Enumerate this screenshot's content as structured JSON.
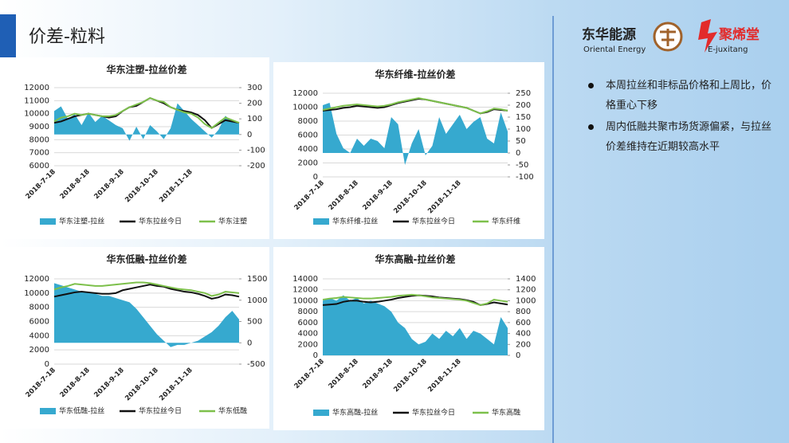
{
  "slide": {
    "title": "价差-粒料",
    "logo1": {
      "name": "东华能源",
      "sub": "Oriental Energy"
    },
    "logo2": {
      "name": "聚烯堂",
      "sub": "E-juxitang"
    },
    "bullets": [
      "本周拉丝和非标品价格和上周比，价格重心下移",
      "周内低融共聚市场货源偏紧，与拉丝价差维持在近期较高水平"
    ]
  },
  "chart_data": [
    {
      "type": "combo",
      "title": "华东注塑-拉丝价差",
      "categories": [
        "2018-7-18",
        null,
        null,
        null,
        null,
        "2018-8-18",
        null,
        null,
        null,
        null,
        "2018-9-18",
        null,
        null,
        null,
        null,
        "2018-10-18",
        null,
        null,
        null,
        null,
        "2018-11-18",
        null,
        null,
        null,
        null,
        null,
        null,
        null
      ],
      "ylim": [
        6000,
        12000
      ],
      "yticks": [
        6000,
        7000,
        8000,
        9000,
        10000,
        11000,
        12000
      ],
      "y2lim": [
        -200,
        300
      ],
      "y2ticks": [
        -200,
        -100,
        0,
        100,
        200,
        300
      ],
      "series": [
        {
          "name": "华东注塑-拉丝",
          "kind": "area",
          "axis": "y2",
          "color": "#36a9cf",
          "values": [
            150,
            180,
            100,
            130,
            60,
            140,
            80,
            120,
            90,
            60,
            40,
            -40,
            50,
            -30,
            60,
            20,
            -30,
            40,
            200,
            150,
            100,
            60,
            20,
            -20,
            30,
            120,
            80,
            70
          ]
        },
        {
          "name": "华东拉丝今日",
          "kind": "line",
          "color": "#111111",
          "values": [
            9300,
            9400,
            9600,
            9800,
            9900,
            10000,
            9900,
            9800,
            9700,
            9800,
            10200,
            10500,
            10600,
            10900,
            11200,
            11000,
            10800,
            10500,
            10300,
            10200,
            10100,
            9900,
            9500,
            8900,
            9200,
            9500,
            9400,
            9300
          ]
        },
        {
          "name": "华东注塑",
          "kind": "line",
          "color": "#7dc04b",
          "values": [
            9400,
            9700,
            9800,
            10000,
            9900,
            10000,
            9900,
            9800,
            9800,
            9900,
            10200,
            10500,
            10700,
            10900,
            11200,
            11000,
            10900,
            10500,
            10300,
            10100,
            10000,
            9700,
            9200,
            8900,
            9300,
            9700,
            9500,
            9300
          ]
        }
      ]
    },
    {
      "type": "combo",
      "title": "华东纤维-拉丝价差",
      "categories": [
        "2018-7-18",
        null,
        null,
        null,
        null,
        "2018-8-18",
        null,
        null,
        null,
        null,
        "2018-9-18",
        null,
        null,
        null,
        null,
        "2018-10-18",
        null,
        null,
        null,
        null,
        "2018-11-18",
        null,
        null,
        null,
        null,
        null,
        null,
        null
      ],
      "ylim": [
        0,
        12000
      ],
      "yticks": [
        0,
        2000,
        4000,
        6000,
        8000,
        10000,
        12000
      ],
      "y2lim": [
        -100,
        250
      ],
      "y2ticks": [
        -100,
        -50,
        0,
        50,
        100,
        150,
        200,
        250
      ],
      "series": [
        {
          "name": "华东纤维-拉丝",
          "kind": "area",
          "axis": "y2",
          "color": "#36a9cf",
          "values": [
            200,
            210,
            80,
            20,
            0,
            60,
            30,
            60,
            50,
            20,
            150,
            120,
            -50,
            40,
            100,
            -10,
            30,
            150,
            80,
            120,
            160,
            100,
            130,
            150,
            60,
            40,
            170,
            90
          ]
        },
        {
          "name": "华东拉丝今日",
          "kind": "line",
          "color": "#111111",
          "values": [
            9500,
            9600,
            9700,
            9900,
            10000,
            10200,
            10100,
            10000,
            9900,
            10000,
            10300,
            10600,
            10800,
            11000,
            11200,
            11100,
            10900,
            10700,
            10500,
            10300,
            10100,
            9900,
            9500,
            9100,
            9300,
            9700,
            9600,
            9500
          ]
        },
        {
          "name": "华东纤维",
          "kind": "line",
          "color": "#7dc04b",
          "values": [
            9600,
            9800,
            10000,
            10200,
            10300,
            10400,
            10300,
            10200,
            10100,
            10200,
            10400,
            10700,
            10900,
            11100,
            11300,
            11100,
            10900,
            10700,
            10500,
            10300,
            10100,
            9900,
            9500,
            9100,
            9400,
            9800,
            9700,
            9500
          ]
        }
      ]
    },
    {
      "type": "combo",
      "title": "华东低融-拉丝价差",
      "categories": [
        "2018-7-18",
        null,
        null,
        null,
        null,
        "2018-8-18",
        null,
        null,
        null,
        null,
        "2018-9-18",
        null,
        null,
        null,
        null,
        "2018-10-18",
        null,
        null,
        null,
        null,
        "2018-11-18",
        null,
        null,
        null,
        null,
        null,
        null,
        null
      ],
      "ylim": [
        0,
        12000
      ],
      "yticks": [
        0,
        2000,
        4000,
        6000,
        8000,
        10000,
        12000
      ],
      "y2lim": [
        -500,
        1500
      ],
      "y2ticks": [
        -500,
        0,
        500,
        1000,
        1500
      ],
      "series": [
        {
          "name": "华东低融-拉丝",
          "kind": "area",
          "axis": "y2",
          "color": "#36a9cf",
          "values": [
            1400,
            1350,
            1300,
            1250,
            1200,
            1200,
            1150,
            1100,
            1100,
            1050,
            1000,
            950,
            800,
            600,
            400,
            200,
            50,
            -100,
            -50,
            -50,
            0,
            50,
            150,
            250,
            400,
            600,
            750,
            550
          ]
        },
        {
          "name": "华东拉丝今日",
          "kind": "line",
          "color": "#111111",
          "values": [
            9500,
            9700,
            9900,
            10100,
            10200,
            10100,
            10000,
            9900,
            9900,
            10000,
            10400,
            10600,
            10800,
            11000,
            11200,
            11000,
            10900,
            10600,
            10400,
            10200,
            10100,
            9900,
            9600,
            9200,
            9400,
            9800,
            9700,
            9500
          ]
        },
        {
          "name": "华东低融",
          "kind": "line",
          "color": "#7dc04b",
          "values": [
            10500,
            10800,
            11000,
            11300,
            11200,
            11100,
            11000,
            11000,
            11100,
            11200,
            11300,
            11400,
            11500,
            11500,
            11400,
            11200,
            11000,
            10800,
            10600,
            10500,
            10400,
            10200,
            10000,
            9600,
            9800,
            10200,
            10100,
            10000
          ]
        }
      ]
    },
    {
      "type": "combo",
      "title": "华东高融-拉丝价差",
      "categories": [
        "2018-7-18",
        null,
        null,
        null,
        null,
        "2018-8-18",
        null,
        null,
        null,
        null,
        "2018-9-18",
        null,
        null,
        null,
        null,
        "2018-10-18",
        null,
        null,
        null,
        null,
        "2018-11-18",
        null,
        null,
        null,
        null,
        null,
        null,
        null
      ],
      "ylim": [
        0,
        14000
      ],
      "yticks": [
        0,
        2000,
        4000,
        6000,
        8000,
        10000,
        12000,
        14000
      ],
      "y2lim": [
        0,
        1400
      ],
      "y2ticks": [
        0,
        200,
        400,
        600,
        800,
        1000,
        1200,
        1400
      ],
      "series": [
        {
          "name": "华东高融-拉丝",
          "kind": "area",
          "axis": "y2",
          "color": "#36a9cf",
          "values": [
            1000,
            1050,
            1000,
            1100,
            1000,
            1050,
            950,
            1000,
            950,
            900,
            800,
            600,
            500,
            300,
            200,
            250,
            400,
            300,
            450,
            350,
            500,
            300,
            450,
            400,
            300,
            200,
            700,
            500
          ]
        },
        {
          "name": "华东拉丝今日",
          "kind": "line",
          "color": "#111111",
          "values": [
            9200,
            9300,
            9400,
            9800,
            10000,
            10000,
            9800,
            9700,
            9800,
            10000,
            10200,
            10500,
            10700,
            10900,
            11000,
            10900,
            10800,
            10600,
            10500,
            10400,
            10300,
            10100,
            9800,
            9200,
            9400,
            9700,
            9500,
            9300
          ]
        },
        {
          "name": "华东高融",
          "kind": "line",
          "color": "#7dc04b",
          "values": [
            10200,
            10400,
            10500,
            10700,
            10600,
            10500,
            10400,
            10400,
            10500,
            10600,
            10700,
            10900,
            11000,
            11100,
            11000,
            10800,
            10600,
            10500,
            10400,
            10300,
            10200,
            10000,
            9600,
            9200,
            9500,
            10200,
            10000,
            9800
          ]
        }
      ]
    }
  ]
}
